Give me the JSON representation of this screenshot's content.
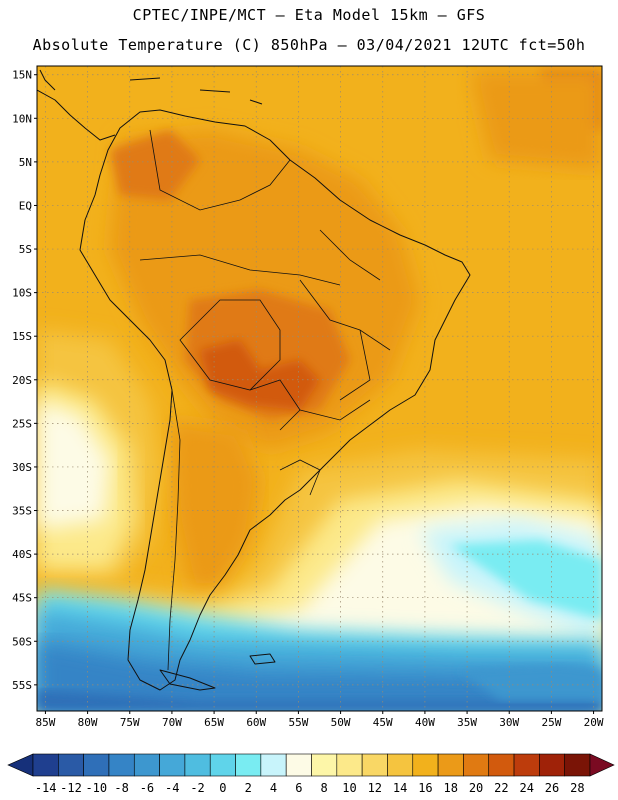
{
  "header": {
    "line1": "CPTEC/INPE/MCT –  Eta Model 15km – GFS",
    "line2": "Absolute Temperature (C) 850hPa – 03/04/2021 12UTC fct=50h"
  },
  "chart_data": {
    "type": "heatmap",
    "variable": "Absolute Temperature (C)",
    "level": "850hPa",
    "xlim": [
      -86,
      -19
    ],
    "ylim": [
      -58,
      16
    ],
    "lon_ticks": [
      -85,
      -80,
      -75,
      -70,
      -65,
      -60,
      -55,
      -50,
      -45,
      -40,
      -35,
      -30,
      -25,
      -20
    ],
    "lon_labels": [
      "85W",
      "80W",
      "75W",
      "70W",
      "65W",
      "60W",
      "55W",
      "50W",
      "45W",
      "40W",
      "35W",
      "30W",
      "25W",
      "20W"
    ],
    "lat_ticks": [
      15,
      10,
      5,
      0,
      -5,
      -10,
      -15,
      -20,
      -25,
      -30,
      -35,
      -40,
      -45,
      -50,
      -55
    ],
    "lat_labels": [
      "15N",
      "10N",
      "5N",
      "EQ",
      "5S",
      "10S",
      "15S",
      "20S",
      "25S",
      "30S",
      "35S",
      "40S",
      "45S",
      "50S",
      "55S"
    ],
    "colorbar": {
      "labels": [
        "-14",
        "-12",
        "-10",
        "-8",
        "-6",
        "-4",
        "-2",
        "0",
        "2",
        "4",
        "6",
        "8",
        "10",
        "12",
        "14",
        "16",
        "18",
        "20",
        "22",
        "24",
        "26",
        "28"
      ],
      "colors": [
        "#1f3f8f",
        "#2a5aa6",
        "#2f6fb8",
        "#3584c6",
        "#3d97cf",
        "#45a8d8",
        "#4fbde0",
        "#5fd4ea",
        "#79ecf2",
        "#c8f4fb",
        "#fdfbe6",
        "#fdf6a8",
        "#fce98a",
        "#f9d765",
        "#f5c43f",
        "#f2b11c",
        "#eb9a18",
        "#e07a12",
        "#d25a0d",
        "#bd3c0c",
        "#9f2208",
        "#7a1406"
      ],
      "under_color": "#16307a",
      "over_color": "#7a0a22"
    },
    "regions": [
      {
        "name": "background-warm",
        "value": 18
      },
      {
        "name": "northern-ocean",
        "value": 18
      },
      {
        "name": "northeast-hot-spot",
        "value": 20
      },
      {
        "name": "amazon-warm",
        "value": 20
      },
      {
        "name": "central-hot",
        "value": 22
      },
      {
        "name": "south-atlantic-yellow",
        "value": 12
      },
      {
        "name": "south-atlantic-pale",
        "value": 6
      },
      {
        "name": "south-atlantic-cyan",
        "value": 2
      },
      {
        "name": "pacific-pale",
        "value": 8
      },
      {
        "name": "southern-ocean-blue",
        "value": -4
      },
      {
        "name": "southern-ocean-deep",
        "value": -8
      }
    ]
  }
}
